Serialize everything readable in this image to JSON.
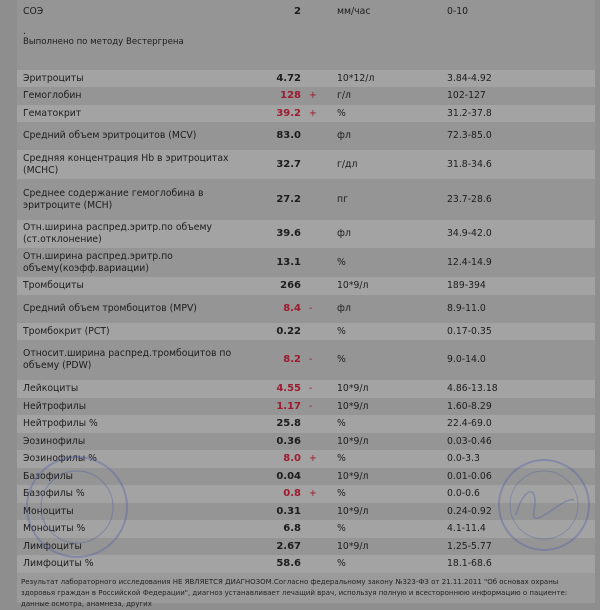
{
  "esr": {
    "name": "СОЭ",
    "value": "2",
    "unit": "мм/час",
    "range": "0-10",
    "dot": ".",
    "note": "Выполнено по методу Вестергрена"
  },
  "rows": [
    {
      "name": "Эритроциты",
      "value": "4.72",
      "flag": "",
      "unit": "10*12/л",
      "range": "3.84-4.92"
    },
    {
      "name": "Гемоглобин",
      "value": "128",
      "flag": "+",
      "unit": "г/л",
      "range": "102-127"
    },
    {
      "name": "Гематокрит",
      "value": "39.2",
      "flag": "+",
      "unit": "%",
      "range": "31.2-37.8"
    },
    {
      "name": "Средний объем эритроцитов (MCV)",
      "value": "83.0",
      "flag": "",
      "unit": "фл",
      "range": "72.3-85.0"
    },
    {
      "name": "Средняя концентрация Hb в эритроцитах (MCHC)",
      "value": "32.7",
      "flag": "",
      "unit": "г/дл",
      "range": "31.8-34.6"
    },
    {
      "name": "Среднее содержание гемоглобина в эритроците (MCH)",
      "value": "27.2",
      "flag": "",
      "unit": "пг",
      "range": "23.7-28.6"
    },
    {
      "name": "Отн.ширина распред.эритр.по объему (ст.отклонение)",
      "value": "39.6",
      "flag": "",
      "unit": "фл",
      "range": "34.9-42.0"
    },
    {
      "name": "Отн.ширина распред.эритр.по объему(коэфф.вариации)",
      "value": "13.1",
      "flag": "",
      "unit": "%",
      "range": "12.4-14.9"
    },
    {
      "name": "Тромбоциты",
      "value": "266",
      "flag": "",
      "unit": "10*9/л",
      "range": "189-394"
    },
    {
      "name": "Средний объем тромбоцитов (MPV)",
      "value": "8.4",
      "flag": "-",
      "unit": "фл",
      "range": "8.9-11.0"
    },
    {
      "name": "Тромбокрит (PCT)",
      "value": "0.22",
      "flag": "",
      "unit": "%",
      "range": "0.17-0.35"
    },
    {
      "name": "Относит.ширина распред.тромбоцитов по объему (PDW)",
      "value": "8.2",
      "flag": "-",
      "unit": "%",
      "range": "9.0-14.0"
    },
    {
      "name": "Лейкоциты",
      "value": "4.55",
      "flag": "-",
      "unit": "10*9/л",
      "range": "4.86-13.18"
    },
    {
      "name": "Нейтрофилы",
      "value": "1.17",
      "flag": "-",
      "unit": "10*9/л",
      "range": "1.60-8.29"
    },
    {
      "name": "Нейтрофилы %",
      "value": "25.8",
      "flag": "",
      "unit": "%",
      "range": "22.4-69.0"
    },
    {
      "name": "Эозинофилы",
      "value": "0.36",
      "flag": "",
      "unit": "10*9/л",
      "range": "0.03-0.46"
    },
    {
      "name": "Эозинофилы %",
      "value": "8.0",
      "flag": "+",
      "unit": "%",
      "range": "0.0-3.3"
    },
    {
      "name": "Базофилы",
      "value": "0.04",
      "flag": "",
      "unit": "10*9/л",
      "range": "0.01-0.06"
    },
    {
      "name": "Базофилы %",
      "value": "0.8",
      "flag": "+",
      "unit": "%",
      "range": "0.0-0.6"
    },
    {
      "name": "Моноциты",
      "value": "0.31",
      "flag": "",
      "unit": "10*9/л",
      "range": "0.24-0.92"
    },
    {
      "name": "Моноциты %",
      "value": "6.8",
      "flag": "",
      "unit": "%",
      "range": "4.1-11.4"
    },
    {
      "name": "Лимфоциты",
      "value": "2.67",
      "flag": "",
      "unit": "10*9/л",
      "range": "1.25-5.77"
    },
    {
      "name": "Лимфоциты %",
      "value": "58.6",
      "flag": "",
      "unit": "%",
      "range": "18.1-68.6"
    }
  ],
  "footer": "Результат лабораторного исследования НЕ ЯВЛЯЕТСЯ ДИАГНОЗОМ.Согласно федеральному закону №323-ФЗ от 21.11.2011 \"Об основах охраны здоровья граждан в Российской Федерации\", диагноз устанавливает лечащий врач, используя полную и всестороннюю информацию о пациенте: данные осмотра, анамнеза, других",
  "colors": {
    "abnormal": "#9c1b2e",
    "stamp": "#4a5aa8"
  }
}
